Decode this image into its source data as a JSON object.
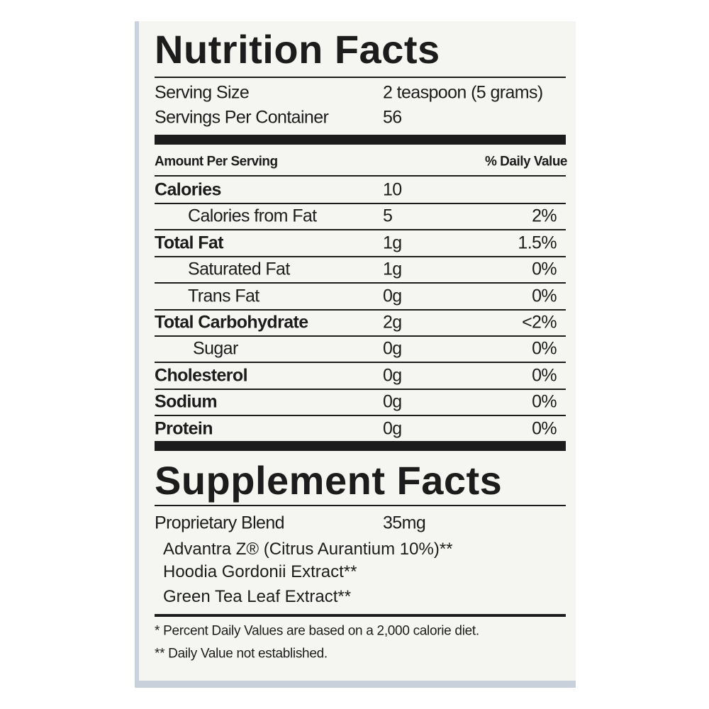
{
  "nutrition_facts": {
    "title": "Nutrition Facts",
    "serving_size_label": "Serving Size",
    "serving_size": "2 teaspoon (5 grams)",
    "servings_per_container_label": "Servings Per Container",
    "servings_per_container": "56",
    "amount_per_serving": "Amount Per Serving",
    "daily_value_header": "% Daily Value",
    "rows": [
      {
        "name": "Calories",
        "amount": "10"
      },
      {
        "name": "Calories from Fat",
        "amount": "5",
        "daily_value": "2%"
      },
      {
        "name": "Total Fat",
        "amount": "1g",
        "daily_value": "1.5%"
      },
      {
        "name": "Saturated Fat",
        "amount": "1g",
        "daily_value": "0%"
      },
      {
        "name": "Trans Fat",
        "amount": "0g",
        "daily_value": "0%"
      },
      {
        "name": "Total Carbohydrate",
        "amount": "2g",
        "daily_value": "<2%"
      },
      {
        "name": "Sugar",
        "amount": "0g",
        "daily_value": "0%"
      },
      {
        "name": "Cholesterol",
        "amount": "0g",
        "daily_value": "0%"
      },
      {
        "name": "Sodium",
        "amount": "0g",
        "daily_value": "0%"
      },
      {
        "name": "Protein",
        "amount": "0g",
        "daily_value": "0%"
      }
    ]
  },
  "supplement_facts": {
    "title": "Supplement Facts",
    "blend_name": "Proprietary Blend",
    "blend_amount": "35mg",
    "ingredients": [
      "Advantra Z® (Citrus Aurantium 10%)**",
      "Hoodia Gordonii Extract**",
      "Green Tea Leaf Extract**"
    ]
  },
  "footnotes": [
    "*  Percent Daily Values are based on a 2,000 calorie diet.",
    "**  Daily Value not established."
  ]
}
